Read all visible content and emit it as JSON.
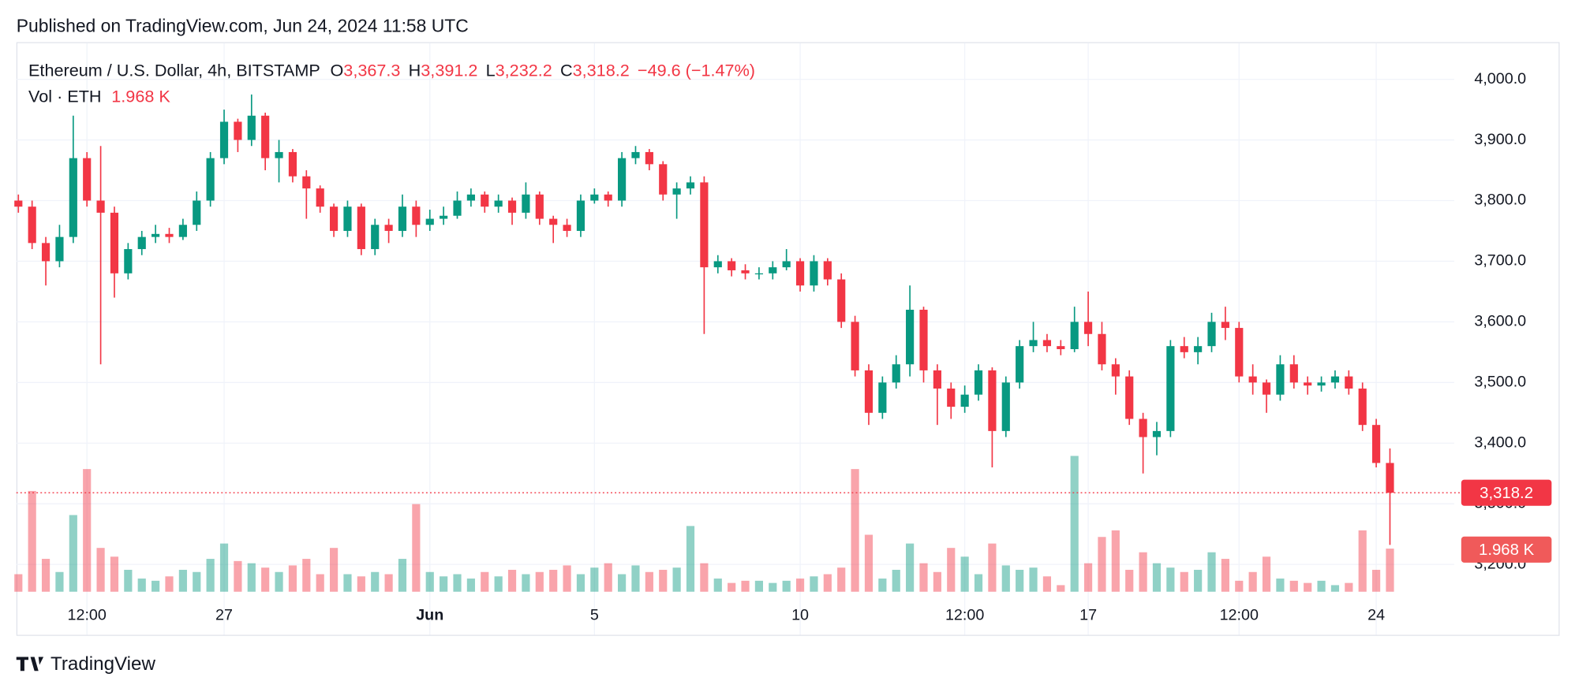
{
  "header": {
    "published": "Published on TradingView.com, Jun 24, 2024 11:58 UTC"
  },
  "footer": {
    "brand": "TradingView"
  },
  "chart_data": {
    "type": "candlestick",
    "title": "Ethereum / U.S. Dollar, 4h, BITSTAMP",
    "legend": {
      "o": "O",
      "open": "3,367.3",
      "h": "H",
      "high": "3,391.2",
      "l": "L",
      "low": "3,232.2",
      "c": "C",
      "close": "3,318.2",
      "change": "−49.6 (−1.47%)",
      "volume_name": "Vol · ETH",
      "volume": "1.968 K"
    },
    "up_color": "#089981",
    "down_color": "#f23645",
    "categories": [
      null,
      null,
      null,
      null,
      null,
      "12:00",
      null,
      null,
      null,
      null,
      null,
      null,
      null,
      null,
      null,
      "27",
      null,
      null,
      null,
      null,
      null,
      null,
      null,
      null,
      null,
      null,
      null,
      null,
      null,
      null,
      "Jun",
      null,
      null,
      null,
      null,
      null,
      null,
      null,
      null,
      null,
      null,
      null,
      "5",
      null,
      null,
      null,
      null,
      null,
      null,
      null,
      null,
      null,
      null,
      null,
      null,
      null,
      null,
      "10",
      null,
      null,
      null,
      null,
      null,
      null,
      null,
      null,
      null,
      null,
      null,
      "12:00",
      null,
      null,
      null,
      null,
      null,
      null,
      null,
      null,
      "17",
      null,
      null,
      null,
      null,
      null,
      null,
      null,
      null,
      null,
      null,
      "12:00",
      null,
      null,
      null,
      null,
      null,
      null,
      null,
      null,
      null,
      "24",
      null
    ],
    "open": [
      3800,
      3790,
      3730,
      3700,
      3740,
      3870,
      3800,
      3780,
      3680,
      3720,
      3740,
      3745,
      3740,
      3760,
      3800,
      3870,
      3930,
      3900,
      3940,
      3870,
      3880,
      3840,
      3820,
      3790,
      3750,
      3790,
      3720,
      3760,
      3750,
      3790,
      3760,
      3770,
      3775,
      3800,
      3810,
      3790,
      3800,
      3780,
      3810,
      3770,
      3760,
      3750,
      3800,
      3810,
      3800,
      3870,
      3880,
      3860,
      3810,
      3820,
      3830,
      3690,
      3700,
      3685,
      3680,
      3680,
      3690,
      3700,
      3660,
      3700,
      3670,
      3600,
      3520,
      3450,
      3500,
      3530,
      3620,
      3520,
      3490,
      3460,
      3480,
      3520,
      3420,
      3500,
      3560,
      3570,
      3560,
      3555,
      3600,
      3580,
      3530,
      3510,
      3440,
      3410,
      3420,
      3560,
      3550,
      3560,
      3600,
      3590,
      3510,
      3500,
      3480,
      3530,
      3500,
      3495,
      3500,
      3510,
      3490,
      3430,
      3367.3
    ],
    "high": [
      3810,
      3800,
      3740,
      3760,
      3940,
      3880,
      3890,
      3790,
      3730,
      3750,
      3760,
      3755,
      3770,
      3815,
      3880,
      3950,
      3935,
      3975,
      3945,
      3900,
      3885,
      3850,
      3825,
      3795,
      3800,
      3795,
      3770,
      3770,
      3810,
      3800,
      3785,
      3790,
      3815,
      3820,
      3815,
      3810,
      3805,
      3830,
      3815,
      3775,
      3770,
      3810,
      3820,
      3815,
      3880,
      3890,
      3885,
      3865,
      3830,
      3840,
      3840,
      3710,
      3705,
      3695,
      3690,
      3700,
      3720,
      3705,
      3710,
      3705,
      3680,
      3610,
      3530,
      3510,
      3545,
      3660,
      3625,
      3530,
      3500,
      3495,
      3530,
      3525,
      3510,
      3570,
      3600,
      3580,
      3570,
      3625,
      3650,
      3600,
      3540,
      3520,
      3450,
      3435,
      3570,
      3575,
      3575,
      3615,
      3625,
      3600,
      3530,
      3505,
      3545,
      3545,
      3510,
      3510,
      3520,
      3520,
      3500,
      3440,
      3391.2
    ],
    "low": [
      3780,
      3720,
      3660,
      3690,
      3730,
      3790,
      3530,
      3640,
      3670,
      3710,
      3730,
      3730,
      3735,
      3750,
      3790,
      3860,
      3880,
      3890,
      3850,
      3830,
      3830,
      3770,
      3780,
      3740,
      3740,
      3710,
      3710,
      3730,
      3740,
      3740,
      3750,
      3760,
      3770,
      3790,
      3780,
      3780,
      3760,
      3770,
      3760,
      3730,
      3740,
      3740,
      3795,
      3790,
      3790,
      3860,
      3850,
      3800,
      3770,
      3810,
      3580,
      3680,
      3675,
      3670,
      3670,
      3670,
      3685,
      3650,
      3650,
      3660,
      3590,
      3510,
      3430,
      3440,
      3490,
      3510,
      3500,
      3430,
      3440,
      3450,
      3470,
      3360,
      3410,
      3490,
      3550,
      3550,
      3545,
      3550,
      3560,
      3520,
      3480,
      3430,
      3350,
      3380,
      3410,
      3540,
      3530,
      3550,
      3570,
      3500,
      3480,
      3450,
      3470,
      3490,
      3480,
      3485,
      3490,
      3480,
      3420,
      3360,
      3232.2
    ],
    "close": [
      3790,
      3730,
      3700,
      3740,
      3870,
      3800,
      3780,
      3680,
      3720,
      3740,
      3745,
      3740,
      3760,
      3800,
      3870,
      3930,
      3900,
      3940,
      3870,
      3880,
      3840,
      3820,
      3790,
      3750,
      3790,
      3720,
      3760,
      3750,
      3790,
      3760,
      3770,
      3775,
      3800,
      3810,
      3790,
      3800,
      3780,
      3810,
      3770,
      3760,
      3750,
      3800,
      3810,
      3800,
      3870,
      3880,
      3860,
      3810,
      3820,
      3830,
      3690,
      3700,
      3685,
      3680,
      3680,
      3690,
      3700,
      3660,
      3700,
      3670,
      3600,
      3520,
      3450,
      3500,
      3530,
      3620,
      3520,
      3490,
      3460,
      3480,
      3520,
      3420,
      3500,
      3560,
      3570,
      3560,
      3555,
      3600,
      3580,
      3530,
      3510,
      3440,
      3410,
      3420,
      3560,
      3550,
      3560,
      3600,
      3590,
      3510,
      3500,
      3480,
      3530,
      3500,
      3495,
      3500,
      3510,
      3490,
      3430,
      3367.3,
      3318.2
    ],
    "volume": [
      0.8,
      4.6,
      1.5,
      0.9,
      3.5,
      5.6,
      2.0,
      1.6,
      1.0,
      0.6,
      0.5,
      0.7,
      1.0,
      0.9,
      1.5,
      2.2,
      1.4,
      1.3,
      1.1,
      0.9,
      1.2,
      1.5,
      0.8,
      2.0,
      0.8,
      0.7,
      0.9,
      0.8,
      1.5,
      4.0,
      0.9,
      0.7,
      0.8,
      0.6,
      0.9,
      0.7,
      1.0,
      0.8,
      0.9,
      1.0,
      1.2,
      0.8,
      1.1,
      1.3,
      0.8,
      1.2,
      0.9,
      1.0,
      1.1,
      3.0,
      1.3,
      0.6,
      0.4,
      0.5,
      0.5,
      0.4,
      0.5,
      0.6,
      0.7,
      0.8,
      1.1,
      5.6,
      2.6,
      0.6,
      1.0,
      2.2,
      1.3,
      0.9,
      2.0,
      1.6,
      0.8,
      2.2,
      1.2,
      1.0,
      1.1,
      0.7,
      0.3,
      6.2,
      1.3,
      2.5,
      2.8,
      1.0,
      1.8,
      1.3,
      1.1,
      0.9,
      1.0,
      1.8,
      1.5,
      0.5,
      0.9,
      1.6,
      0.6,
      0.5,
      0.4,
      0.5,
      0.3,
      0.4,
      2.8,
      1.0,
      1.968
    ],
    "ylim": [
      3155,
      4058
    ],
    "yticks": [
      {
        "value": 3200,
        "label": "3,200.0"
      },
      {
        "value": 3300,
        "label": "3,300.0"
      },
      {
        "value": 3400,
        "label": "3,400.0"
      },
      {
        "value": 3500,
        "label": "3,500.0"
      },
      {
        "value": 3600,
        "label": "3,600.0"
      },
      {
        "value": 3700,
        "label": "3,700.0"
      },
      {
        "value": 3800,
        "label": "3,800.0"
      },
      {
        "value": 3900,
        "label": "3,900.0"
      },
      {
        "value": 4000,
        "label": "4,000.0"
      }
    ],
    "vlim": [
      0,
      25
    ],
    "grid": true,
    "last_price": {
      "value": 3318.2,
      "label": "3,318.2"
    },
    "last_volume": {
      "value": 1.968,
      "label": "1.968 K"
    }
  }
}
